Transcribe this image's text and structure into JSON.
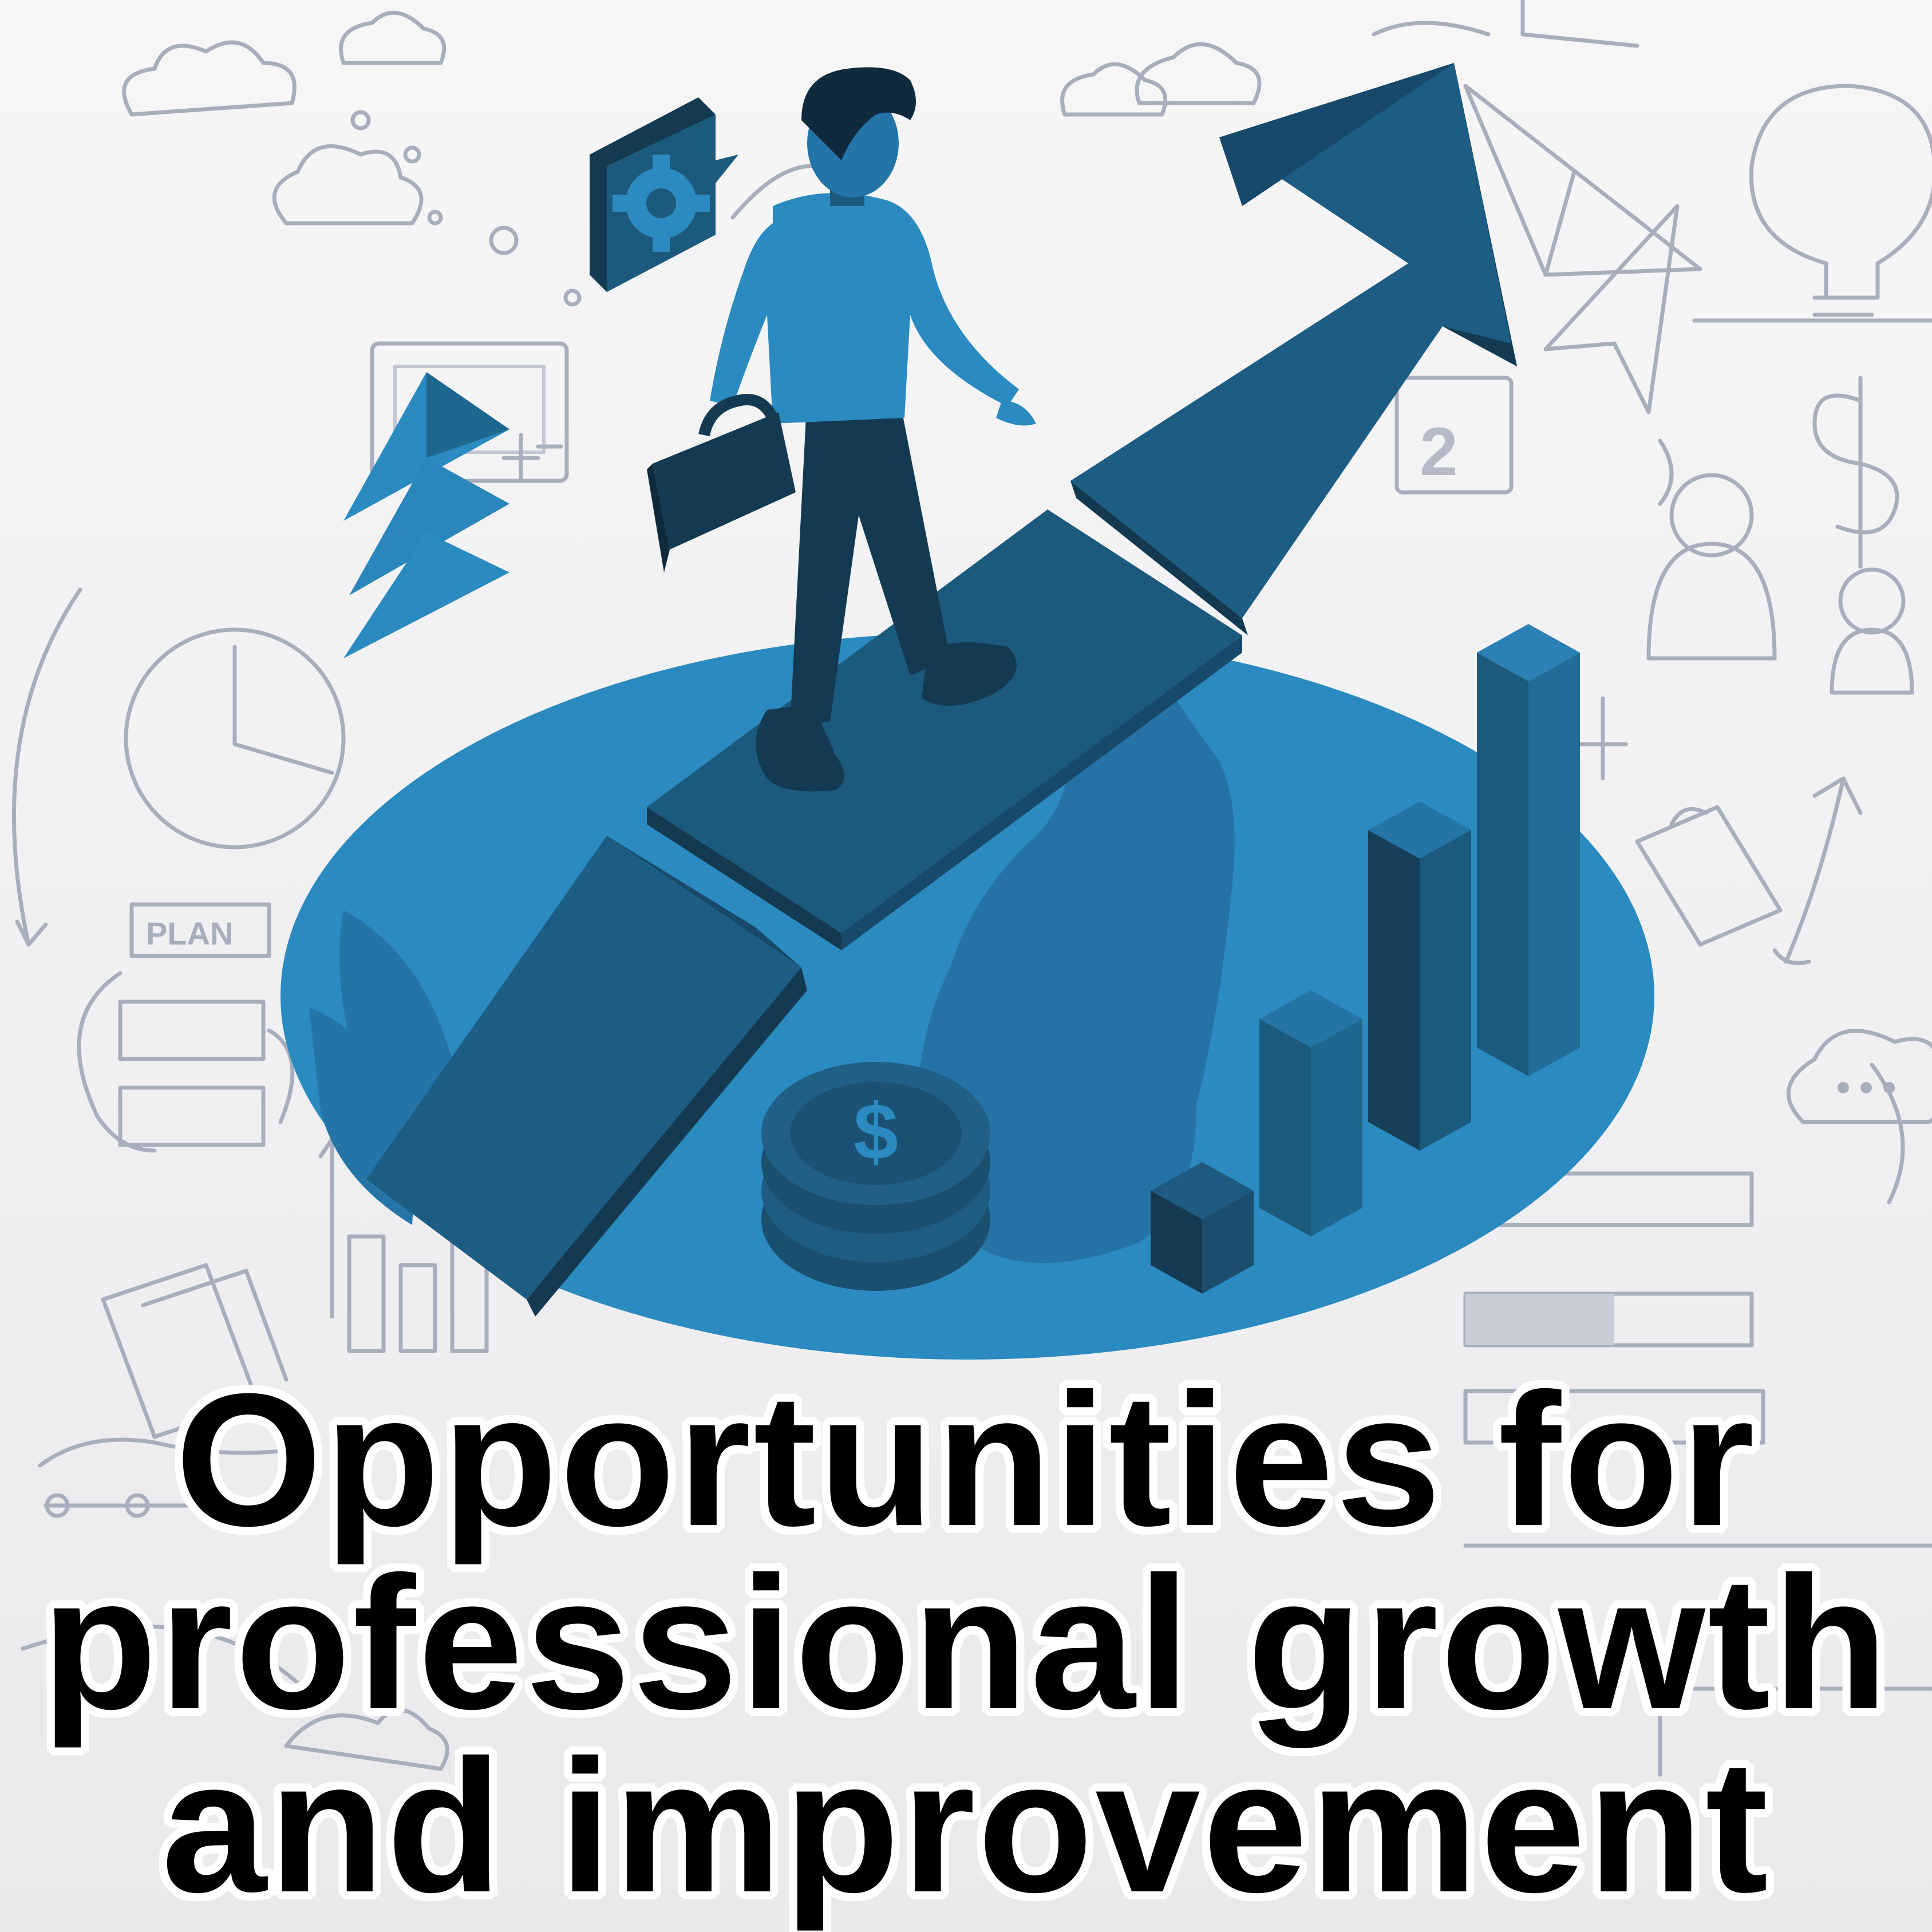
{
  "caption": {
    "line1": "Opportunities for",
    "line2": "professional growth",
    "line3": "and improvement"
  },
  "sketch_labels": {
    "plan": "PLAN",
    "number": "2"
  },
  "colors": {
    "background": "#f2f2f3",
    "disc": "#2b8ac0",
    "blue_dark": "#1b5a7d",
    "blue_mid": "#256f9c",
    "blue_deep": "#143a52",
    "sketch": "#a9aebd",
    "caption_text": "#000000",
    "caption_outline": "#ffffff"
  },
  "icons": [
    "gear-icon",
    "dollar-coin-icon",
    "lightbulb-icon",
    "dollar-sign-icon",
    "briefcase-icon",
    "paper-plane-icon",
    "cloud-icon",
    "clock-icon",
    "upward-arrow-icon"
  ]
}
